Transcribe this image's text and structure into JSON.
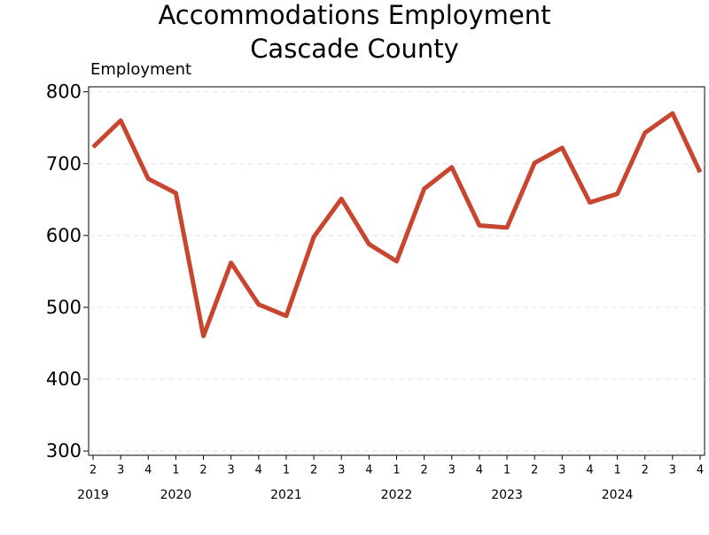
{
  "chart_data": {
    "type": "line",
    "title": "Accommodations Employment",
    "subtitle": "Cascade County",
    "y_label": "Employment",
    "categories": [
      "2",
      "3",
      "4",
      "1",
      "2",
      "3",
      "4",
      "1",
      "2",
      "3",
      "4",
      "1",
      "2",
      "3",
      "4",
      "1",
      "2",
      "3",
      "4",
      "1",
      "2",
      "3",
      "4"
    ],
    "year_labels": [
      "2019",
      null,
      null,
      "2020",
      null,
      null,
      null,
      "2021",
      null,
      null,
      null,
      "2022",
      null,
      null,
      null,
      "2023",
      null,
      null,
      null,
      "2024",
      null,
      null,
      null
    ],
    "series": [
      {
        "name": "Employment",
        "color": "#c8452f",
        "values": [
          723,
          760,
          679,
          659,
          460,
          562,
          504,
          488,
          598,
          651,
          588,
          564,
          665,
          695,
          614,
          611,
          701,
          722,
          646,
          658,
          743,
          770,
          688
        ]
      }
    ],
    "ylim": [
      294,
      807
    ],
    "yticks": [
      300,
      400,
      500,
      600,
      700,
      800
    ],
    "grid": true
  }
}
